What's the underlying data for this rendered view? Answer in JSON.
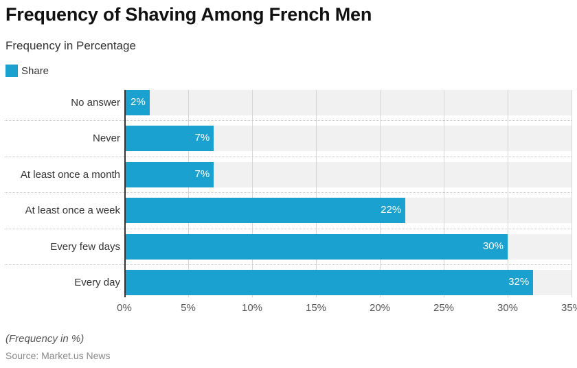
{
  "chart_data": {
    "type": "bar",
    "orientation": "horizontal",
    "title": "Frequency of Shaving Among French Men",
    "subtitle": "Frequency in Percentage",
    "categories": [
      "No answer",
      "Never",
      "At least once a month",
      "At least once a week",
      "Every few days",
      "Every day"
    ],
    "series": [
      {
        "name": "Share",
        "color": "#1ba1cf",
        "values": [
          2,
          7,
          7,
          22,
          30,
          32
        ]
      }
    ],
    "value_labels": [
      "2%",
      "7%",
      "7%",
      "22%",
      "30%",
      "32%"
    ],
    "xlabel": "",
    "ylabel": "",
    "xlim": [
      0,
      35
    ],
    "xticks": [
      "0%",
      "5%",
      "10%",
      "15%",
      "20%",
      "25%",
      "30%",
      "35%"
    ],
    "grid": true,
    "legend_position": "top-left",
    "note": "(Frequency in %)",
    "source": "Source: Market.us News"
  }
}
